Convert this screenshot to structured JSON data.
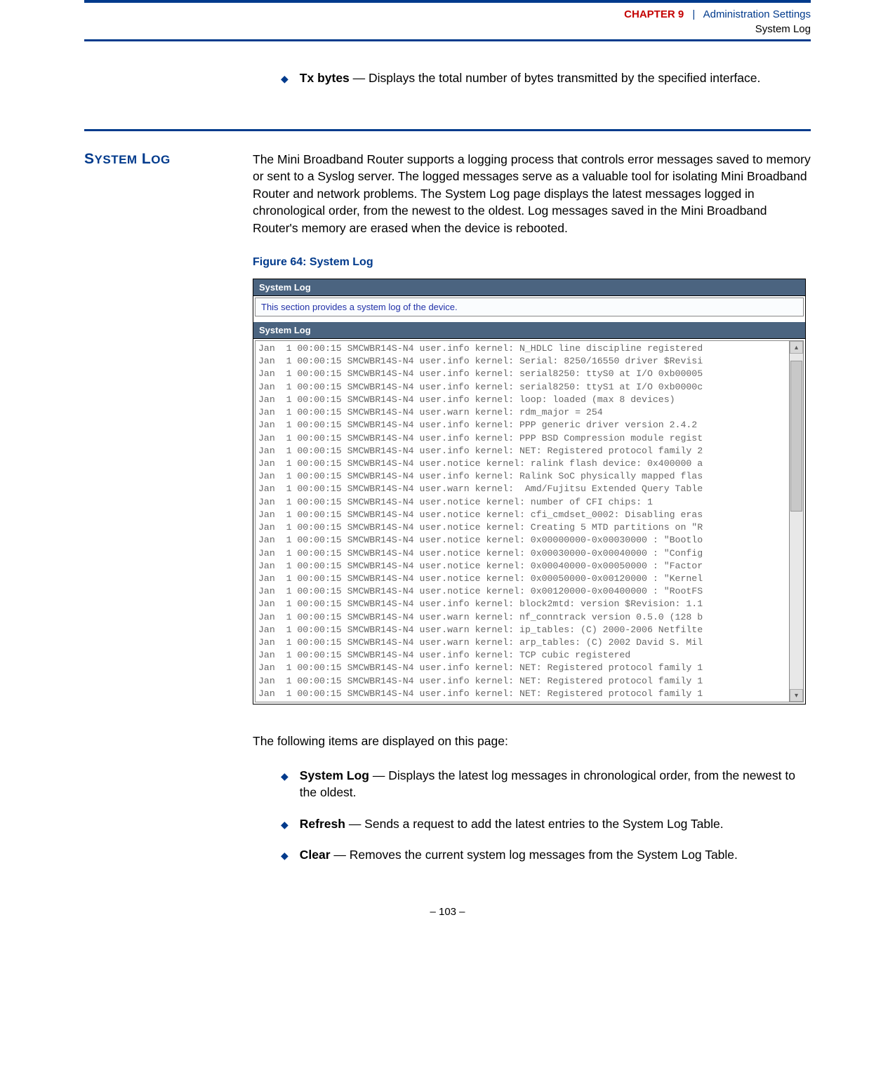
{
  "header": {
    "chapter_label": "CHAPTER 9",
    "separator": "|",
    "section_title": "Administration Settings",
    "subsection_title": "System Log"
  },
  "top_bullet": {
    "term": "Tx bytes",
    "desc": " — Displays the total number of bytes transmitted by the specified interface."
  },
  "section_heading": {
    "word1_cap": "S",
    "word1_rest": "YSTEM",
    "word2_cap": "L",
    "word2_rest": "OG"
  },
  "intro_paragraph": "The Mini Broadband Router supports a logging process that controls error messages saved to memory or sent to a Syslog server. The logged messages serve as a valuable tool for isolating Mini Broadband Router and network problems. The System Log page displays the latest messages logged in chronological order, from the newest to the oldest. Log messages saved in the Mini Broadband Router's memory are erased when the device is rebooted.",
  "figure_caption": "Figure 64:  System Log",
  "screenshot": {
    "titlebar1": "System Log",
    "description": "This section provides a system log of the device.",
    "titlebar2": "System Log",
    "log_lines": [
      "Jan  1 00:00:15 SMCWBR14S-N4 user.info kernel: N_HDLC line discipline registered",
      "Jan  1 00:00:15 SMCWBR14S-N4 user.info kernel: Serial: 8250/16550 driver $Revisi",
      "Jan  1 00:00:15 SMCWBR14S-N4 user.info kernel: serial8250: ttyS0 at I/O 0xb00005",
      "Jan  1 00:00:15 SMCWBR14S-N4 user.info kernel: serial8250: ttyS1 at I/O 0xb0000c",
      "Jan  1 00:00:15 SMCWBR14S-N4 user.info kernel: loop: loaded (max 8 devices)",
      "Jan  1 00:00:15 SMCWBR14S-N4 user.warn kernel: rdm_major = 254",
      "Jan  1 00:00:15 SMCWBR14S-N4 user.info kernel: PPP generic driver version 2.4.2",
      "Jan  1 00:00:15 SMCWBR14S-N4 user.info kernel: PPP BSD Compression module regist",
      "Jan  1 00:00:15 SMCWBR14S-N4 user.info kernel: NET: Registered protocol family 2",
      "Jan  1 00:00:15 SMCWBR14S-N4 user.notice kernel: ralink flash device: 0x400000 a",
      "Jan  1 00:00:15 SMCWBR14S-N4 user.info kernel: Ralink SoC physically mapped flas",
      "Jan  1 00:00:15 SMCWBR14S-N4 user.warn kernel:  Amd/Fujitsu Extended Query Table",
      "Jan  1 00:00:15 SMCWBR14S-N4 user.notice kernel: number of CFI chips: 1",
      "Jan  1 00:00:15 SMCWBR14S-N4 user.notice kernel: cfi_cmdset_0002: Disabling eras",
      "Jan  1 00:00:15 SMCWBR14S-N4 user.notice kernel: Creating 5 MTD partitions on \"R",
      "Jan  1 00:00:15 SMCWBR14S-N4 user.notice kernel: 0x00000000-0x00030000 : \"Bootlo",
      "Jan  1 00:00:15 SMCWBR14S-N4 user.notice kernel: 0x00030000-0x00040000 : \"Config",
      "Jan  1 00:00:15 SMCWBR14S-N4 user.notice kernel: 0x00040000-0x00050000 : \"Factor",
      "Jan  1 00:00:15 SMCWBR14S-N4 user.notice kernel: 0x00050000-0x00120000 : \"Kernel",
      "Jan  1 00:00:15 SMCWBR14S-N4 user.notice kernel: 0x00120000-0x00400000 : \"RootFS",
      "Jan  1 00:00:15 SMCWBR14S-N4 user.info kernel: block2mtd: version $Revision: 1.1",
      "Jan  1 00:00:15 SMCWBR14S-N4 user.warn kernel: nf_conntrack version 0.5.0 (128 b",
      "Jan  1 00:00:15 SMCWBR14S-N4 user.warn kernel: ip_tables: (C) 2000-2006 Netfilte",
      "Jan  1 00:00:15 SMCWBR14S-N4 user.warn kernel: arp_tables: (C) 2002 David S. Mil",
      "Jan  1 00:00:15 SMCWBR14S-N4 user.info kernel: TCP cubic registered",
      "Jan  1 00:00:15 SMCWBR14S-N4 user.info kernel: NET: Registered protocol family 1",
      "Jan  1 00:00:15 SMCWBR14S-N4 user.info kernel: NET: Registered protocol family 1",
      "Jan  1 00:00:15 SMCWBR14S-N4 user.info kernel: NET: Registered protocol family 1"
    ],
    "scroll_thumb": {
      "top_pct": 2,
      "height_pct": 45
    }
  },
  "follow_text": "The following items are displayed on this page:",
  "bullets": [
    {
      "term": "System Log",
      "desc": " — Displays the latest log messages in chronological order, from the newest to the oldest."
    },
    {
      "term": "Refresh",
      "desc": " — Sends a request to add the latest entries to the System Log Table."
    },
    {
      "term": "Clear",
      "desc": " — Removes the current system log messages from the System Log Table."
    }
  ],
  "footer": "–  103  –",
  "colors": {
    "brand_blue": "#003a8c",
    "brand_red": "#c40000",
    "panel_header": "#4b6480",
    "link_blue": "#2030a8"
  }
}
